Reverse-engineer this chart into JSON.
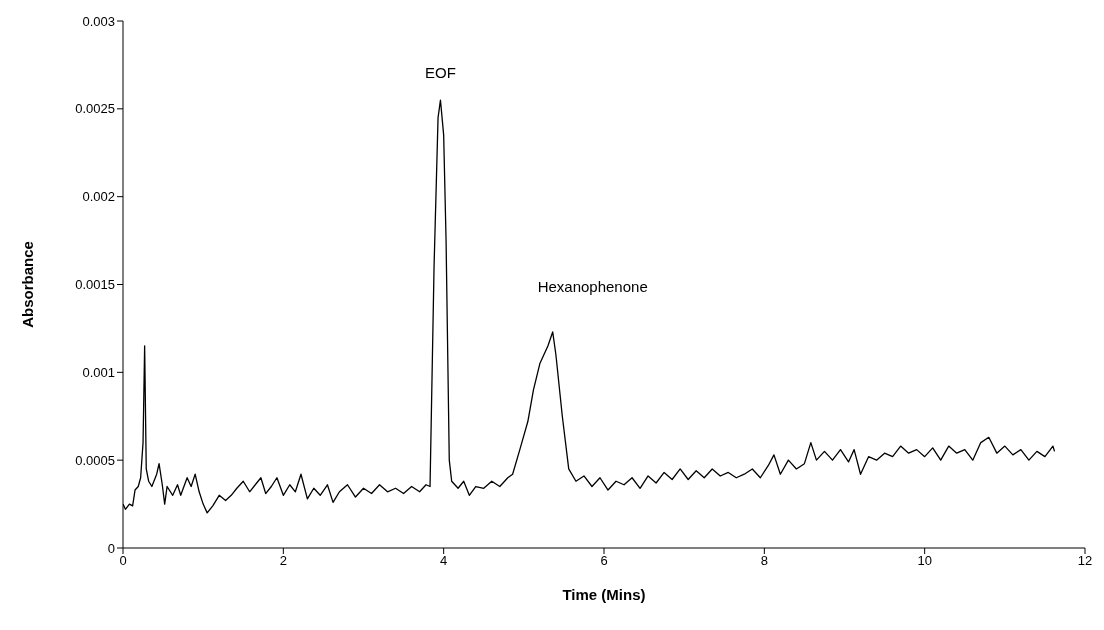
{
  "chart_data": {
    "type": "line",
    "xlabel": "Time (Mins)",
    "ylabel": "Absorbance",
    "xlim": [
      0,
      12
    ],
    "xticks": [
      0,
      2,
      4,
      6,
      8,
      10,
      12
    ],
    "ylim": [
      0,
      0.003
    ],
    "yticks": [
      0,
      0.0005,
      0.001,
      0.0015,
      0.002,
      0.0025,
      0.003
    ],
    "grid": false,
    "legend": false,
    "marker": "none",
    "line_style": "solid",
    "annotations": [
      {
        "text": "EOF",
        "x": 3.96,
        "y": 0.00255
      },
      {
        "text": "Hexanophenone",
        "x": 5.36,
        "y": 0.00123
      }
    ],
    "series": [
      {
        "color": "#000000",
        "x": [
          0,
          0.03,
          0.08,
          0.12,
          0.15,
          0.19,
          0.22,
          0.25,
          0.27,
          0.29,
          0.32,
          0.36,
          0.42,
          0.45,
          0.49,
          0.52,
          0.55,
          0.62,
          0.68,
          0.72,
          0.8,
          0.85,
          0.9,
          0.95,
          1.0,
          1.05,
          1.12,
          1.2,
          1.28,
          1.35,
          1.42,
          1.5,
          1.58,
          1.65,
          1.72,
          1.78,
          1.85,
          1.92,
          2.0,
          2.08,
          2.15,
          2.22,
          2.3,
          2.38,
          2.46,
          2.55,
          2.62,
          2.7,
          2.8,
          2.9,
          3.0,
          3.1,
          3.2,
          3.3,
          3.4,
          3.5,
          3.6,
          3.7,
          3.78,
          3.83,
          3.88,
          3.93,
          3.96,
          4.0,
          4.03,
          4.07,
          4.1,
          4.18,
          4.25,
          4.32,
          4.4,
          4.5,
          4.6,
          4.7,
          4.8,
          4.86,
          4.95,
          5.05,
          5.12,
          5.2,
          5.3,
          5.36,
          5.4,
          5.48,
          5.56,
          5.65,
          5.75,
          5.85,
          5.95,
          6.05,
          6.15,
          6.25,
          6.35,
          6.45,
          6.55,
          6.65,
          6.75,
          6.85,
          6.95,
          7.05,
          7.15,
          7.25,
          7.35,
          7.45,
          7.55,
          7.65,
          7.75,
          7.85,
          7.95,
          8.05,
          8.12,
          8.2,
          8.3,
          8.4,
          8.5,
          8.58,
          8.65,
          8.75,
          8.85,
          8.95,
          9.05,
          9.12,
          9.2,
          9.3,
          9.4,
          9.5,
          9.6,
          9.7,
          9.8,
          9.9,
          10.0,
          10.1,
          10.2,
          10.3,
          10.4,
          10.5,
          10.6,
          10.7,
          10.8,
          10.9,
          11.0,
          11.1,
          11.2,
          11.3,
          11.4,
          11.5,
          11.6,
          11.62
        ],
        "values": [
          0.00025,
          0.00022,
          0.00025,
          0.00024,
          0.00033,
          0.00035,
          0.0004,
          0.0006,
          0.00115,
          0.00045,
          0.00038,
          0.00035,
          0.00042,
          0.00048,
          0.00036,
          0.00025,
          0.00035,
          0.0003,
          0.00036,
          0.0003,
          0.0004,
          0.00035,
          0.00042,
          0.00032,
          0.00025,
          0.0002,
          0.00024,
          0.0003,
          0.00027,
          0.0003,
          0.00034,
          0.00038,
          0.00032,
          0.00036,
          0.0004,
          0.00031,
          0.00035,
          0.0004,
          0.0003,
          0.00036,
          0.00032,
          0.00042,
          0.00028,
          0.00034,
          0.0003,
          0.00036,
          0.00026,
          0.00032,
          0.00036,
          0.00029,
          0.00034,
          0.00031,
          0.00036,
          0.00032,
          0.00034,
          0.00031,
          0.00035,
          0.00032,
          0.00036,
          0.00035,
          0.0016,
          0.00245,
          0.00255,
          0.00235,
          0.00175,
          0.0005,
          0.00038,
          0.00034,
          0.00038,
          0.0003,
          0.00035,
          0.00034,
          0.00038,
          0.00035,
          0.0004,
          0.00042,
          0.00056,
          0.00072,
          0.0009,
          0.00105,
          0.00115,
          0.00123,
          0.0011,
          0.00075,
          0.00045,
          0.00038,
          0.00041,
          0.00035,
          0.0004,
          0.00033,
          0.00038,
          0.00036,
          0.0004,
          0.00034,
          0.00041,
          0.00037,
          0.00043,
          0.00039,
          0.00045,
          0.00039,
          0.00044,
          0.0004,
          0.00045,
          0.00041,
          0.00043,
          0.0004,
          0.00042,
          0.00045,
          0.0004,
          0.00047,
          0.00053,
          0.00042,
          0.0005,
          0.00045,
          0.00048,
          0.0006,
          0.0005,
          0.00055,
          0.0005,
          0.00056,
          0.00049,
          0.00056,
          0.00042,
          0.00052,
          0.0005,
          0.00054,
          0.00052,
          0.00058,
          0.00054,
          0.00056,
          0.00052,
          0.00057,
          0.0005,
          0.00058,
          0.00054,
          0.00056,
          0.0005,
          0.0006,
          0.00063,
          0.00054,
          0.00058,
          0.00053,
          0.00056,
          0.0005,
          0.00055,
          0.00052,
          0.00058,
          0.00055
        ]
      }
    ]
  }
}
